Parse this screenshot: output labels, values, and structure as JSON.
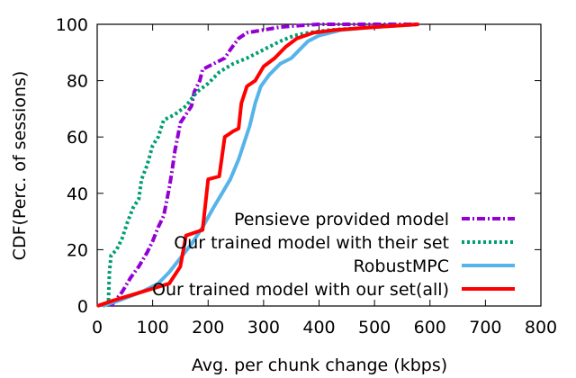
{
  "chart_data": {
    "type": "line",
    "xlabel": "Avg. per chunk change (kbps)",
    "ylabel": "CDF(Perc. of sessions)",
    "xlim": [
      0,
      800
    ],
    "ylim": [
      0,
      100
    ],
    "xticks": [
      0,
      100,
      200,
      300,
      400,
      500,
      600,
      700,
      800
    ],
    "yticks": [
      0,
      20,
      40,
      60,
      80,
      100
    ],
    "grid": false,
    "legend_position": "bottom-right",
    "series": [
      {
        "name": "Pensieve provided model",
        "color": "#9400d3",
        "dash": "dash-dot",
        "points": [
          [
            25,
            0
          ],
          [
            45,
            5
          ],
          [
            60,
            10
          ],
          [
            75,
            14
          ],
          [
            90,
            19
          ],
          [
            100,
            23
          ],
          [
            110,
            28
          ],
          [
            120,
            32
          ],
          [
            125,
            37
          ],
          [
            130,
            42
          ],
          [
            135,
            48
          ],
          [
            140,
            55
          ],
          [
            145,
            60
          ],
          [
            150,
            65
          ],
          [
            160,
            68
          ],
          [
            170,
            71
          ],
          [
            175,
            76
          ],
          [
            185,
            80
          ],
          [
            190,
            84
          ],
          [
            210,
            86
          ],
          [
            230,
            88
          ],
          [
            240,
            91
          ],
          [
            255,
            95
          ],
          [
            270,
            97
          ],
          [
            300,
            98
          ],
          [
            330,
            99
          ],
          [
            360,
            99.5
          ],
          [
            400,
            100
          ],
          [
            500,
            100
          ],
          [
            580,
            100
          ]
        ]
      },
      {
        "name": "Our trained model with their set",
        "color": "#009e73",
        "dash": "dotted",
        "points": [
          [
            20,
            0
          ],
          [
            22,
            12
          ],
          [
            25,
            18
          ],
          [
            35,
            20
          ],
          [
            45,
            24
          ],
          [
            55,
            30
          ],
          [
            65,
            35
          ],
          [
            75,
            38
          ],
          [
            80,
            45
          ],
          [
            90,
            50
          ],
          [
            100,
            57
          ],
          [
            110,
            60
          ],
          [
            120,
            66
          ],
          [
            140,
            68
          ],
          [
            160,
            71
          ],
          [
            180,
            76
          ],
          [
            200,
            79
          ],
          [
            220,
            83
          ],
          [
            245,
            86
          ],
          [
            270,
            88
          ],
          [
            300,
            91
          ],
          [
            330,
            94
          ],
          [
            355,
            96
          ],
          [
            380,
            97
          ],
          [
            420,
            98
          ],
          [
            500,
            99
          ],
          [
            580,
            100
          ]
        ]
      },
      {
        "name": "RobustMPC",
        "color": "#56b4e9",
        "dash": "solid",
        "points": [
          [
            10,
            0
          ],
          [
            40,
            2
          ],
          [
            80,
            5
          ],
          [
            110,
            8
          ],
          [
            130,
            12
          ],
          [
            150,
            17
          ],
          [
            170,
            22
          ],
          [
            190,
            28
          ],
          [
            210,
            35
          ],
          [
            225,
            40
          ],
          [
            240,
            45
          ],
          [
            255,
            52
          ],
          [
            265,
            58
          ],
          [
            275,
            64
          ],
          [
            285,
            72
          ],
          [
            295,
            78
          ],
          [
            310,
            82
          ],
          [
            330,
            86
          ],
          [
            350,
            88
          ],
          [
            365,
            91
          ],
          [
            380,
            94
          ],
          [
            400,
            96
          ],
          [
            440,
            98
          ],
          [
            500,
            99
          ],
          [
            580,
            100
          ]
        ]
      },
      {
        "name": "Our trained model with our set(all)",
        "color": "#ff0000",
        "dash": "solid",
        "points": [
          [
            0,
            0
          ],
          [
            30,
            2
          ],
          [
            80,
            5
          ],
          [
            130,
            8
          ],
          [
            150,
            14
          ],
          [
            160,
            25
          ],
          [
            175,
            26
          ],
          [
            190,
            27
          ],
          [
            200,
            45
          ],
          [
            220,
            46
          ],
          [
            230,
            60
          ],
          [
            245,
            62
          ],
          [
            255,
            63
          ],
          [
            260,
            72
          ],
          [
            270,
            78
          ],
          [
            285,
            80
          ],
          [
            300,
            85
          ],
          [
            320,
            88
          ],
          [
            340,
            92
          ],
          [
            360,
            95
          ],
          [
            390,
            97
          ],
          [
            430,
            98
          ],
          [
            500,
            99
          ],
          [
            580,
            100
          ]
        ]
      }
    ]
  }
}
